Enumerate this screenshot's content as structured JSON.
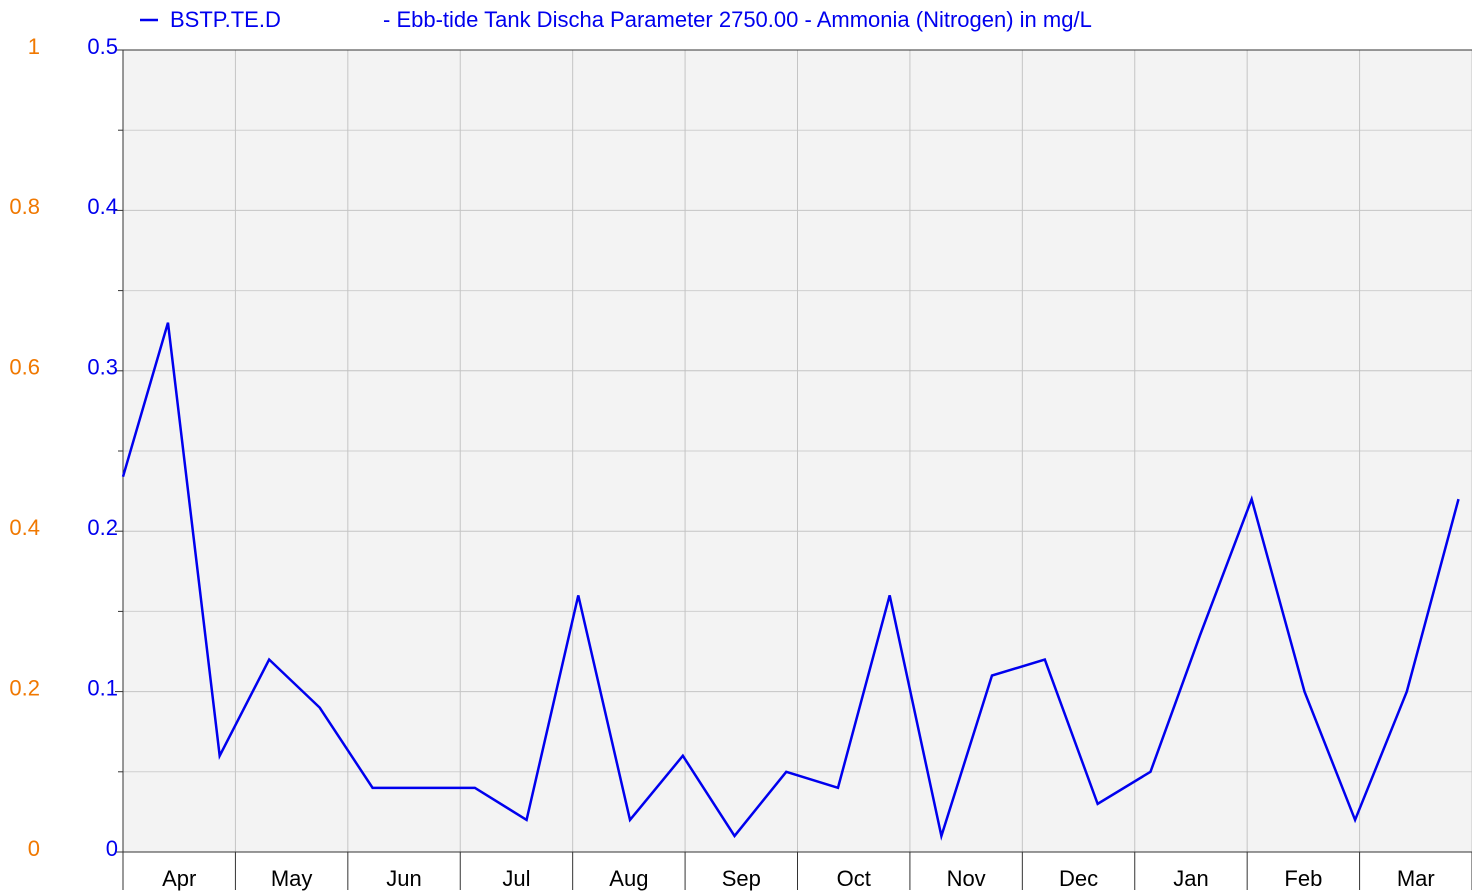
{
  "chart_data": {
    "type": "line",
    "title": "- Ebb-tide Tank Discha Parameter 2750.00 - Ammonia (Nitrogen) in mg/L",
    "categories": [
      "Apr",
      "May",
      "Jun",
      "Jul",
      "Aug",
      "Sep",
      "Oct",
      "Nov",
      "Dec",
      "Jan",
      "Feb",
      "Mar"
    ],
    "xlim": [
      0,
      12
    ],
    "xticks": [
      0,
      1,
      2,
      3,
      4,
      5,
      6,
      7,
      8,
      9,
      10,
      11,
      12
    ],
    "series": [
      {
        "name": "BSTP.TE.D",
        "color": "#0000ee",
        "x": [
          0,
          0.4,
          0.86,
          1.3,
          1.75,
          2.22,
          2.66,
          3.13,
          3.59,
          4.05,
          4.51,
          4.98,
          5.44,
          5.9,
          6.36,
          6.82,
          7.28,
          7.73,
          8.2,
          8.67,
          9.14,
          9.58,
          10.04,
          10.51,
          10.96,
          11.42,
          11.88
        ],
        "values": [
          0.234,
          0.33,
          0.06,
          0.12,
          0.09,
          0.04,
          0.04,
          0.04,
          0.02,
          0.16,
          0.02,
          0.06,
          0.01,
          0.05,
          0.04,
          0.16,
          0.01,
          0.11,
          0.12,
          0.03,
          0.05,
          0.135,
          0.22,
          0.1,
          0.02,
          0.1,
          0.22
        ]
      }
    ],
    "ylim": [
      0,
      0.5
    ],
    "yticks": [
      0,
      0.1,
      0.2,
      0.3,
      0.4,
      0.5
    ],
    "minor_yticks": [
      0.05,
      0.15,
      0.25,
      0.35,
      0.45
    ],
    "y2lim": [
      0,
      1
    ],
    "y2ticks": [
      0,
      0.2,
      0.4,
      0.6,
      0.8,
      1
    ],
    "y_color": "#0000ee",
    "y2_color": "#f07800",
    "grid": true
  }
}
